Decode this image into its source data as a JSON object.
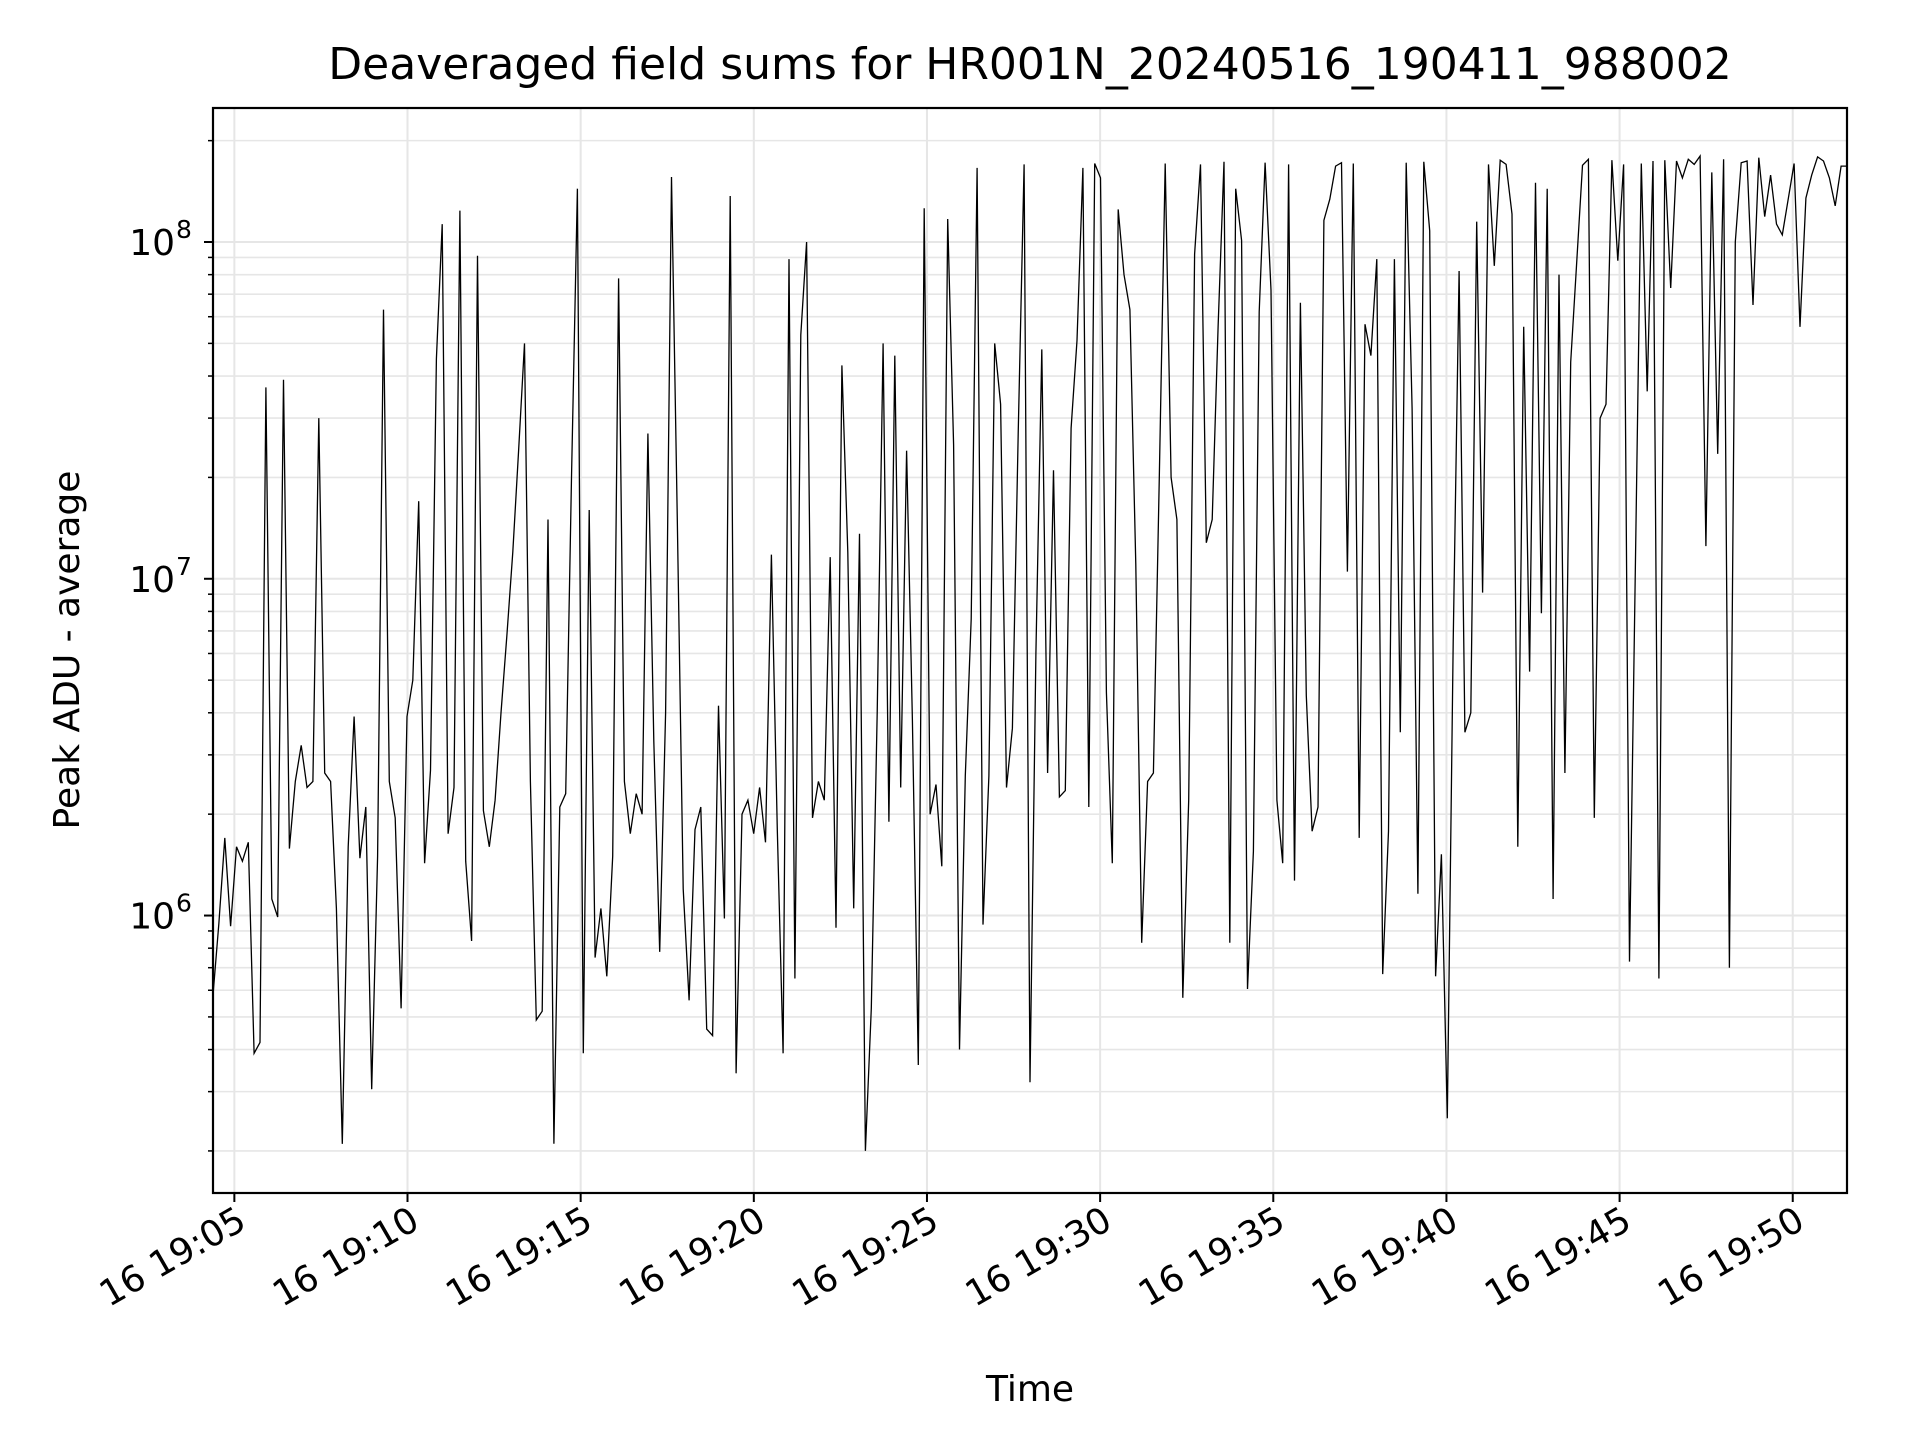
{
  "chart_data": {
    "type": "line",
    "title": "Deaveraged field sums for HR001N_20240516_190411_988002",
    "xlabel": "Time",
    "ylabel": "Peak ADU - average",
    "yscale": "log",
    "ylim": [
      150000,
      250000000
    ],
    "xlim": [
      "2024-05-16 19:04:23",
      "2024-05-16 19:51:34"
    ],
    "x_start": "2024-05-16 19:04:23",
    "x_end": "2024-05-16 19:51:34",
    "x_tick_labels": [
      "16 19:05",
      "16 19:10",
      "16 19:15",
      "16 19:20",
      "16 19:25",
      "16 19:30",
      "16 19:35",
      "16 19:40",
      "16 19:45",
      "16 19:50"
    ],
    "x_ticks": [
      "2024-05-16 19:05",
      "2024-05-16 19:10",
      "2024-05-16 19:15",
      "2024-05-16 19:20",
      "2024-05-16 19:25",
      "2024-05-16 19:30",
      "2024-05-16 19:35",
      "2024-05-16 19:40",
      "2024-05-16 19:45",
      "2024-05-16 19:50"
    ],
    "y_tick_labels": [
      {
        "base": "10",
        "exp": "6",
        "value": 1000000
      },
      {
        "base": "10",
        "exp": "7",
        "value": 10000000
      },
      {
        "base": "10",
        "exp": "8",
        "value": 100000000
      }
    ],
    "grid": true,
    "line_color": "#000000",
    "grid_color": "#e6e6e6",
    "series": [
      {
        "values": [
          580000,
          950000,
          1700000,
          930000,
          1600000,
          1450000,
          1650000,
          390000,
          420000,
          37000000,
          1120000,
          990000,
          39000000,
          1580000,
          2500000,
          3200000,
          2400000,
          2500000,
          30000000,
          2650000,
          2500000,
          1050000,
          210000,
          1600000,
          3900000,
          1480000,
          2100000,
          305000,
          1500000,
          63000000,
          2500000,
          1950000,
          530000,
          3900000,
          5000000,
          17000000,
          1430000,
          2700000,
          45000000,
          113000000,
          1750000,
          2400000,
          124000000,
          1450000,
          840000,
          91000000,
          2050000,
          1600000,
          2200000,
          4000000,
          6800000,
          12000000,
          24000000,
          50000000,
          2500000,
          490000,
          520000,
          15000000,
          210000,
          2100000,
          2300000,
          20000000,
          144000000,
          390000,
          16000000,
          750000,
          1050000,
          660000,
          1500000,
          78000000,
          2500000,
          1750000,
          2300000,
          2000000,
          27000000,
          3300000,
          780000,
          4000000,
          156000000,
          15000000,
          1200000,
          560000,
          1800000,
          2100000,
          460000,
          440000,
          4200000,
          980000,
          137000000,
          340000,
          2000000,
          2200000,
          1750000,
          2400000,
          1650000,
          11800000,
          1800000,
          390000,
          89000000,
          650000,
          53000000,
          100000000,
          1950000,
          2500000,
          2200000,
          11600000,
          920000,
          43000000,
          12000000,
          1050000,
          13600000,
          200000,
          530000,
          4000000,
          50000000,
          1900000,
          46000000,
          2400000,
          24000000,
          3800000,
          360000,
          126000000,
          2000000,
          2450000,
          1400000,
          117000000,
          25000000,
          400000,
          2600000,
          7600000,
          166000000,
          940000,
          2600000,
          50000000,
          33000000,
          2400000,
          3600000,
          27000000,
          170000000,
          320000,
          6000000,
          48000000,
          2650000,
          21000000,
          2250000,
          2350000,
          28000000,
          51000000,
          166000000,
          2100000,
          171000000,
          155000000,
          4600000,
          1430000,
          125000000,
          80000000,
          63000000,
          11000000,
          830000,
          2500000,
          2650000,
          20000000,
          171000000,
          20000000,
          15000000,
          570000,
          2200000,
          92000000,
          170000000,
          12800000,
          15000000,
          56000000,
          173000000,
          830000,
          144000000,
          101000000,
          605000,
          1550000,
          62000000,
          172000000,
          72000000,
          2200000,
          1430000,
          170000000,
          1270000,
          66000000,
          4500000,
          1780000,
          2100000,
          116000000,
          134000000,
          168000000,
          172000000,
          10500000,
          171000000,
          1700000,
          57000000,
          46000000,
          89000000,
          670000,
          1780000,
          89000000,
          3500000,
          172000000,
          32000000,
          1160000,
          173000000,
          108000000,
          660000,
          1520000,
          250000,
          6500000,
          82000000,
          3500000,
          4000000,
          115000000,
          9100000,
          170000000,
          85000000,
          175000000,
          170000000,
          121000000,
          1600000,
          56000000,
          5300000,
          150000000,
          7900000,
          144000000,
          1120000,
          80000000,
          2650000,
          44000000,
          86000000,
          169000000,
          176000000,
          1950000,
          30000000,
          33000000,
          175000000,
          88000000,
          170000000,
          730000,
          11000000,
          171000000,
          36000000,
          174000000,
          650000,
          175000000,
          73000000,
          174000000,
          155000000,
          176000000,
          170000000,
          180000000,
          12500000,
          161000000,
          23500000,
          176000000,
          700000,
          100000000,
          172000000,
          174000000,
          65000000,
          178000000,
          119000000,
          158000000,
          113000000,
          105000000,
          134000000,
          171000000,
          56000000,
          135000000,
          158000000,
          179000000,
          174000000,
          155000000,
          128000000,
          168000000,
          168000000
        ]
      }
    ]
  }
}
